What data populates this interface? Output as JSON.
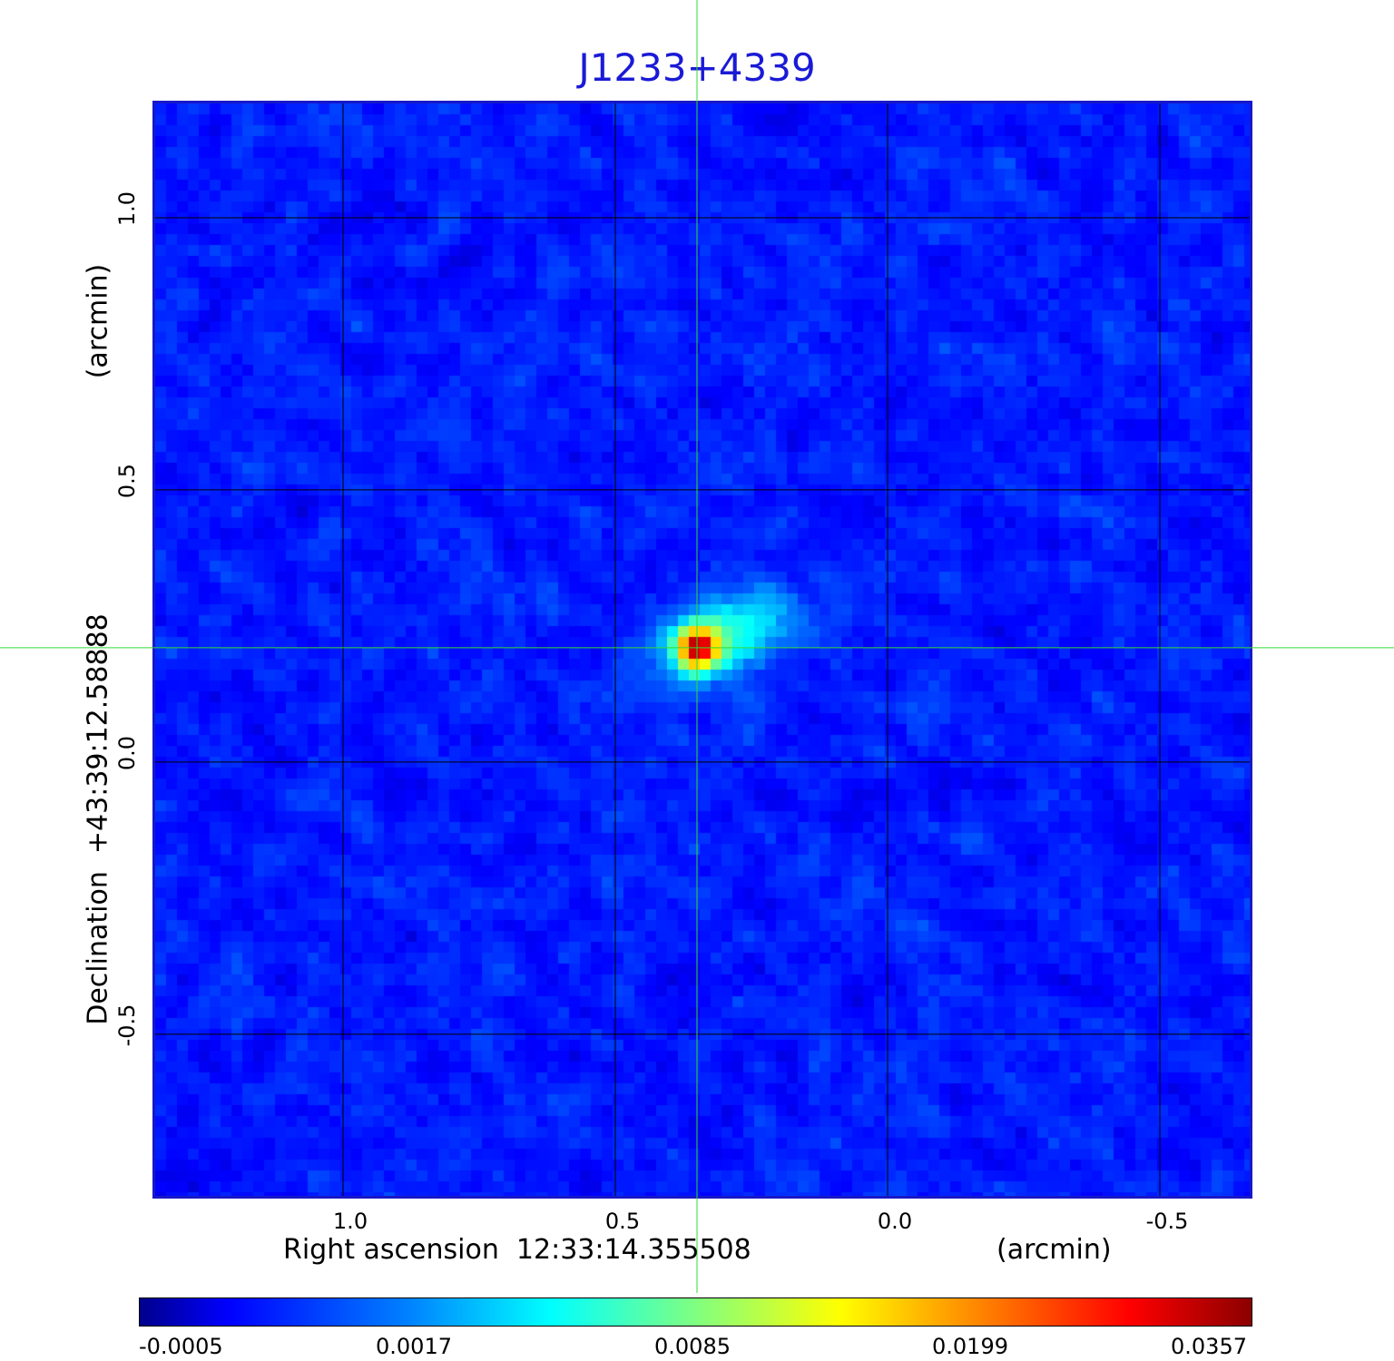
{
  "chart_data": {
    "type": "heatmap",
    "title": "J1233+4339",
    "xlabel": "Right ascension  12:33:14.355508",
    "x_unit": "(arcmin)",
    "ylabel": "Declination  +43:39:12.58888",
    "y_unit": "(arcmin)",
    "x_ticks": [
      "1.0",
      "0.5",
      "0.0",
      "-0.5"
    ],
    "x_tick_values": [
      1.0,
      0.5,
      0.0,
      -0.5
    ],
    "y_ticks": [
      "1.0",
      "0.5",
      "0.0",
      "-0.5"
    ],
    "y_tick_values": [
      1.0,
      0.5,
      0.0,
      -0.5
    ],
    "xlim": [
      1.345,
      -0.665
    ],
    "ylim": [
      -0.797,
      1.21
    ],
    "grid": true,
    "crosshair": {
      "x": 0.35,
      "y": 0.21
    },
    "source": {
      "x": 0.35,
      "y": 0.21,
      "peak": 0.0357
    },
    "colorbar": {
      "ticks": [
        "-0.0005",
        "0.0017",
        "0.0085",
        "0.0199",
        "0.0357"
      ],
      "colormap": "jet"
    }
  },
  "colors": {
    "title": "#1a1ad6",
    "frame": "#1818c8",
    "crosshair": "#33dd33",
    "grid": "#000000"
  }
}
